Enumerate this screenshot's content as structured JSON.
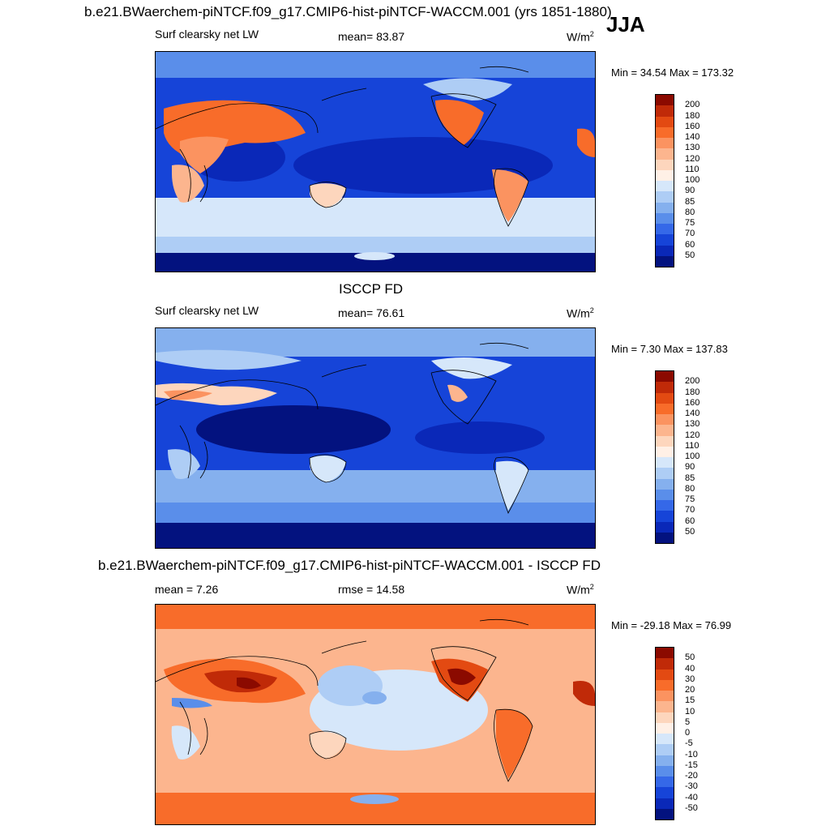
{
  "season": "JJA",
  "panels": [
    {
      "title": "b.e21.BWaerchem-piNTCF.f09_g17.CMIP6-hist-piNTCF-WACCM.001 (yrs 1851-1880)",
      "left": "Surf clearsky net LW",
      "center": "mean=  83.87",
      "units": "W/m",
      "minmax": "Min =  34.54 Max = 173.32",
      "levels": [
        "200",
        "180",
        "160",
        "140",
        "130",
        "120",
        "110",
        "100",
        "90",
        "85",
        "80",
        "75",
        "70",
        "60",
        "50"
      ],
      "colors": [
        "#8b0a00",
        "#c02a08",
        "#e34a12",
        "#f86c2a",
        "#fb9360",
        "#fcb58e",
        "#fdd6bd",
        "#fff0e6",
        "#d6e7fa",
        "#aecdf5",
        "#85b0ee",
        "#5a8eea",
        "#3568e8",
        "#1644d8",
        "#0a28b8",
        "#03127f"
      ]
    },
    {
      "title": "ISCCP FD",
      "left": "Surf clearsky net LW",
      "center": "mean=  76.61",
      "units": "W/m",
      "minmax": "Min =   7.30 Max = 137.83",
      "levels": [
        "200",
        "180",
        "160",
        "140",
        "130",
        "120",
        "110",
        "100",
        "90",
        "85",
        "80",
        "75",
        "70",
        "60",
        "50"
      ],
      "colors": [
        "#8b0a00",
        "#c02a08",
        "#e34a12",
        "#f86c2a",
        "#fb9360",
        "#fcb58e",
        "#fdd6bd",
        "#fff0e6",
        "#d6e7fa",
        "#aecdf5",
        "#85b0ee",
        "#5a8eea",
        "#3568e8",
        "#1644d8",
        "#0a28b8",
        "#03127f"
      ]
    },
    {
      "title": "b.e21.BWaerchem-piNTCF.f09_g17.CMIP6-hist-piNTCF-WACCM.001 - ISCCP FD",
      "left": "mean =   7.26",
      "center": "rmse =  14.58",
      "units": "W/m",
      "minmax": "Min = -29.18 Max =  76.99",
      "levels": [
        "50",
        "40",
        "30",
        "20",
        "15",
        "10",
        "5",
        "0",
        "-5",
        "-10",
        "-15",
        "-20",
        "-30",
        "-40",
        "-50"
      ],
      "colors": [
        "#8b0a00",
        "#c02a08",
        "#e34a12",
        "#f86c2a",
        "#fb9360",
        "#fcb58e",
        "#fdd6bd",
        "#fff0e6",
        "#d6e7fa",
        "#aecdf5",
        "#85b0ee",
        "#5a8eea",
        "#3568e8",
        "#1644d8",
        "#0a28b8",
        "#03127f"
      ]
    }
  ],
  "units_exponent": "2"
}
